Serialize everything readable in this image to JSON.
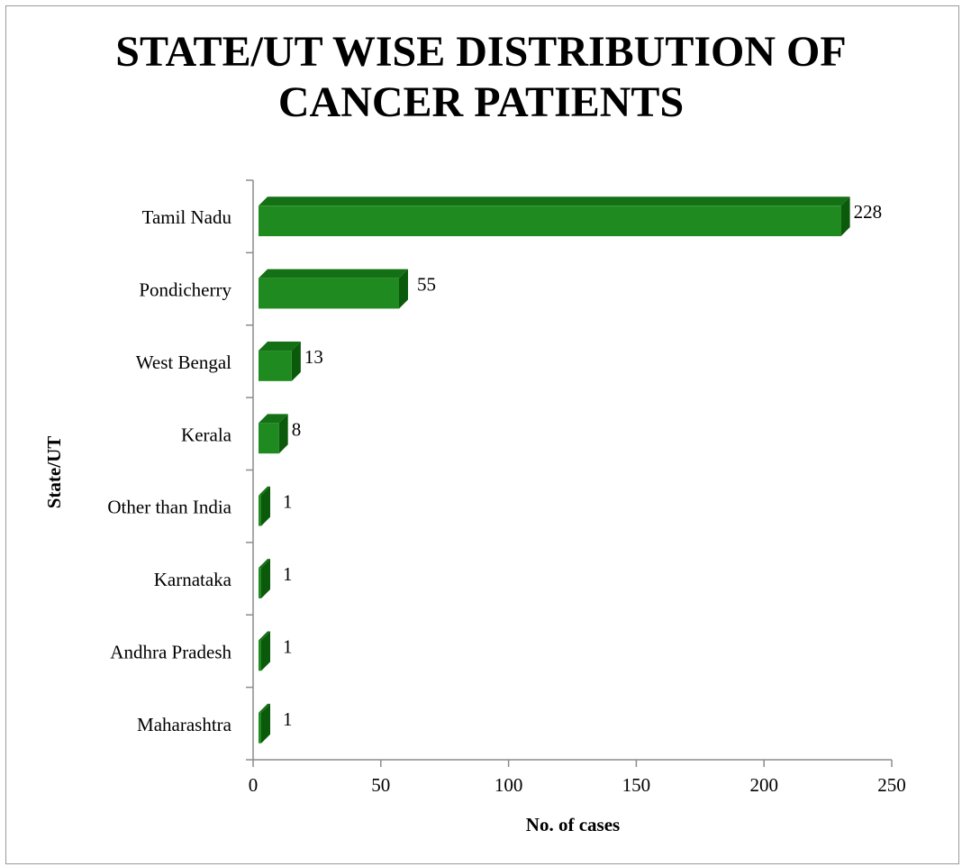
{
  "chart_data": {
    "type": "bar",
    "orientation": "horizontal",
    "style": "3d",
    "title": [
      "STATE/UT WISE DISTRIBUTION OF",
      "CANCER PATIENTS"
    ],
    "xlabel": "No. of cases",
    "ylabel": "State/UT",
    "xlim": [
      0,
      250
    ],
    "xticks": [
      0,
      50,
      100,
      150,
      200,
      250
    ],
    "grid": false,
    "legend": "none",
    "bar_color": "#1f8a1f",
    "categories": [
      "Tamil Nadu",
      "Pondicherry",
      "West Bengal",
      "Kerala",
      "Other than India",
      "Karnataka",
      "Andhra Pradesh",
      "Maharashtra"
    ],
    "values": [
      228,
      55,
      13,
      8,
      1,
      1,
      1,
      1
    ]
  }
}
